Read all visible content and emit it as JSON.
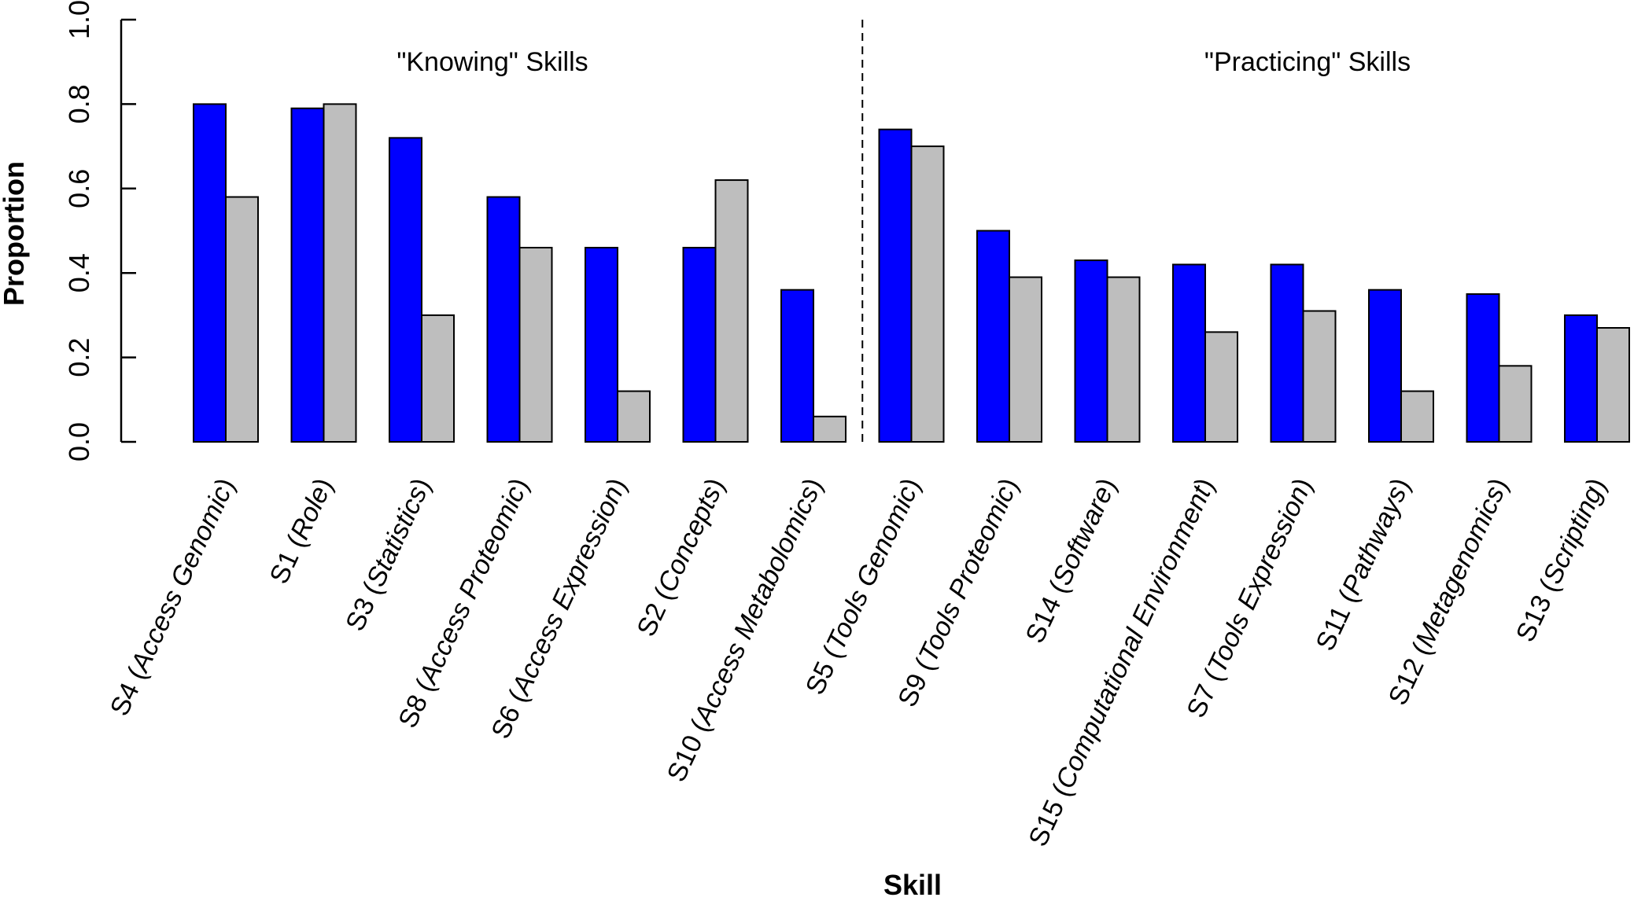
{
  "chart_data": {
    "type": "bar",
    "title": "",
    "xlabel": "Skill",
    "ylabel": "Proportion",
    "ylim": [
      0,
      1.0
    ],
    "yticks": [
      "0.0",
      "0.2",
      "0.4",
      "0.6",
      "0.8",
      "1.0"
    ],
    "grid": false,
    "legend": "none",
    "categories": [
      {
        "code": "S4",
        "name": "Access Genomic"
      },
      {
        "code": "S1",
        "name": "Role"
      },
      {
        "code": "S3",
        "name": "Statistics"
      },
      {
        "code": "S8",
        "name": "Access Proteomic"
      },
      {
        "code": "S6",
        "name": "Access Expression"
      },
      {
        "code": "S2",
        "name": "Concepts"
      },
      {
        "code": "S10",
        "name": "Access Metabolomics"
      },
      {
        "code": "S5",
        "name": "Tools Genomic"
      },
      {
        "code": "S9",
        "name": "Tools Proteomic"
      },
      {
        "code": "S14",
        "name": "Software"
      },
      {
        "code": "S15",
        "name": "Computational Environment"
      },
      {
        "code": "S7",
        "name": "Tools Expression"
      },
      {
        "code": "S11",
        "name": "Pathways"
      },
      {
        "code": "S12",
        "name": "Metagenomics"
      },
      {
        "code": "S13",
        "name": "Scripting"
      }
    ],
    "series": [
      {
        "color": "#0000ff",
        "values": [
          0.8,
          0.79,
          0.72,
          0.58,
          0.46,
          0.46,
          0.36,
          0.74,
          0.5,
          0.43,
          0.42,
          0.42,
          0.36,
          0.35,
          0.3
        ]
      },
      {
        "color": "#bebebe",
        "values": [
          0.58,
          0.8,
          0.3,
          0.46,
          0.12,
          0.62,
          0.06,
          0.7,
          0.39,
          0.39,
          0.26,
          0.31,
          0.12,
          0.18,
          0.27
        ]
      }
    ],
    "groups": [
      {
        "label": "\"Knowing\" Skills",
        "categories": [
          "S4",
          "S1",
          "S3",
          "S8",
          "S6",
          "S2",
          "S10"
        ]
      },
      {
        "label": "\"Practicing\" Skills",
        "categories": [
          "S5",
          "S9",
          "S14",
          "S15",
          "S7",
          "S11",
          "S12",
          "S13"
        ]
      }
    ],
    "divider": {
      "after_category": "S10",
      "style": "dashed"
    }
  }
}
